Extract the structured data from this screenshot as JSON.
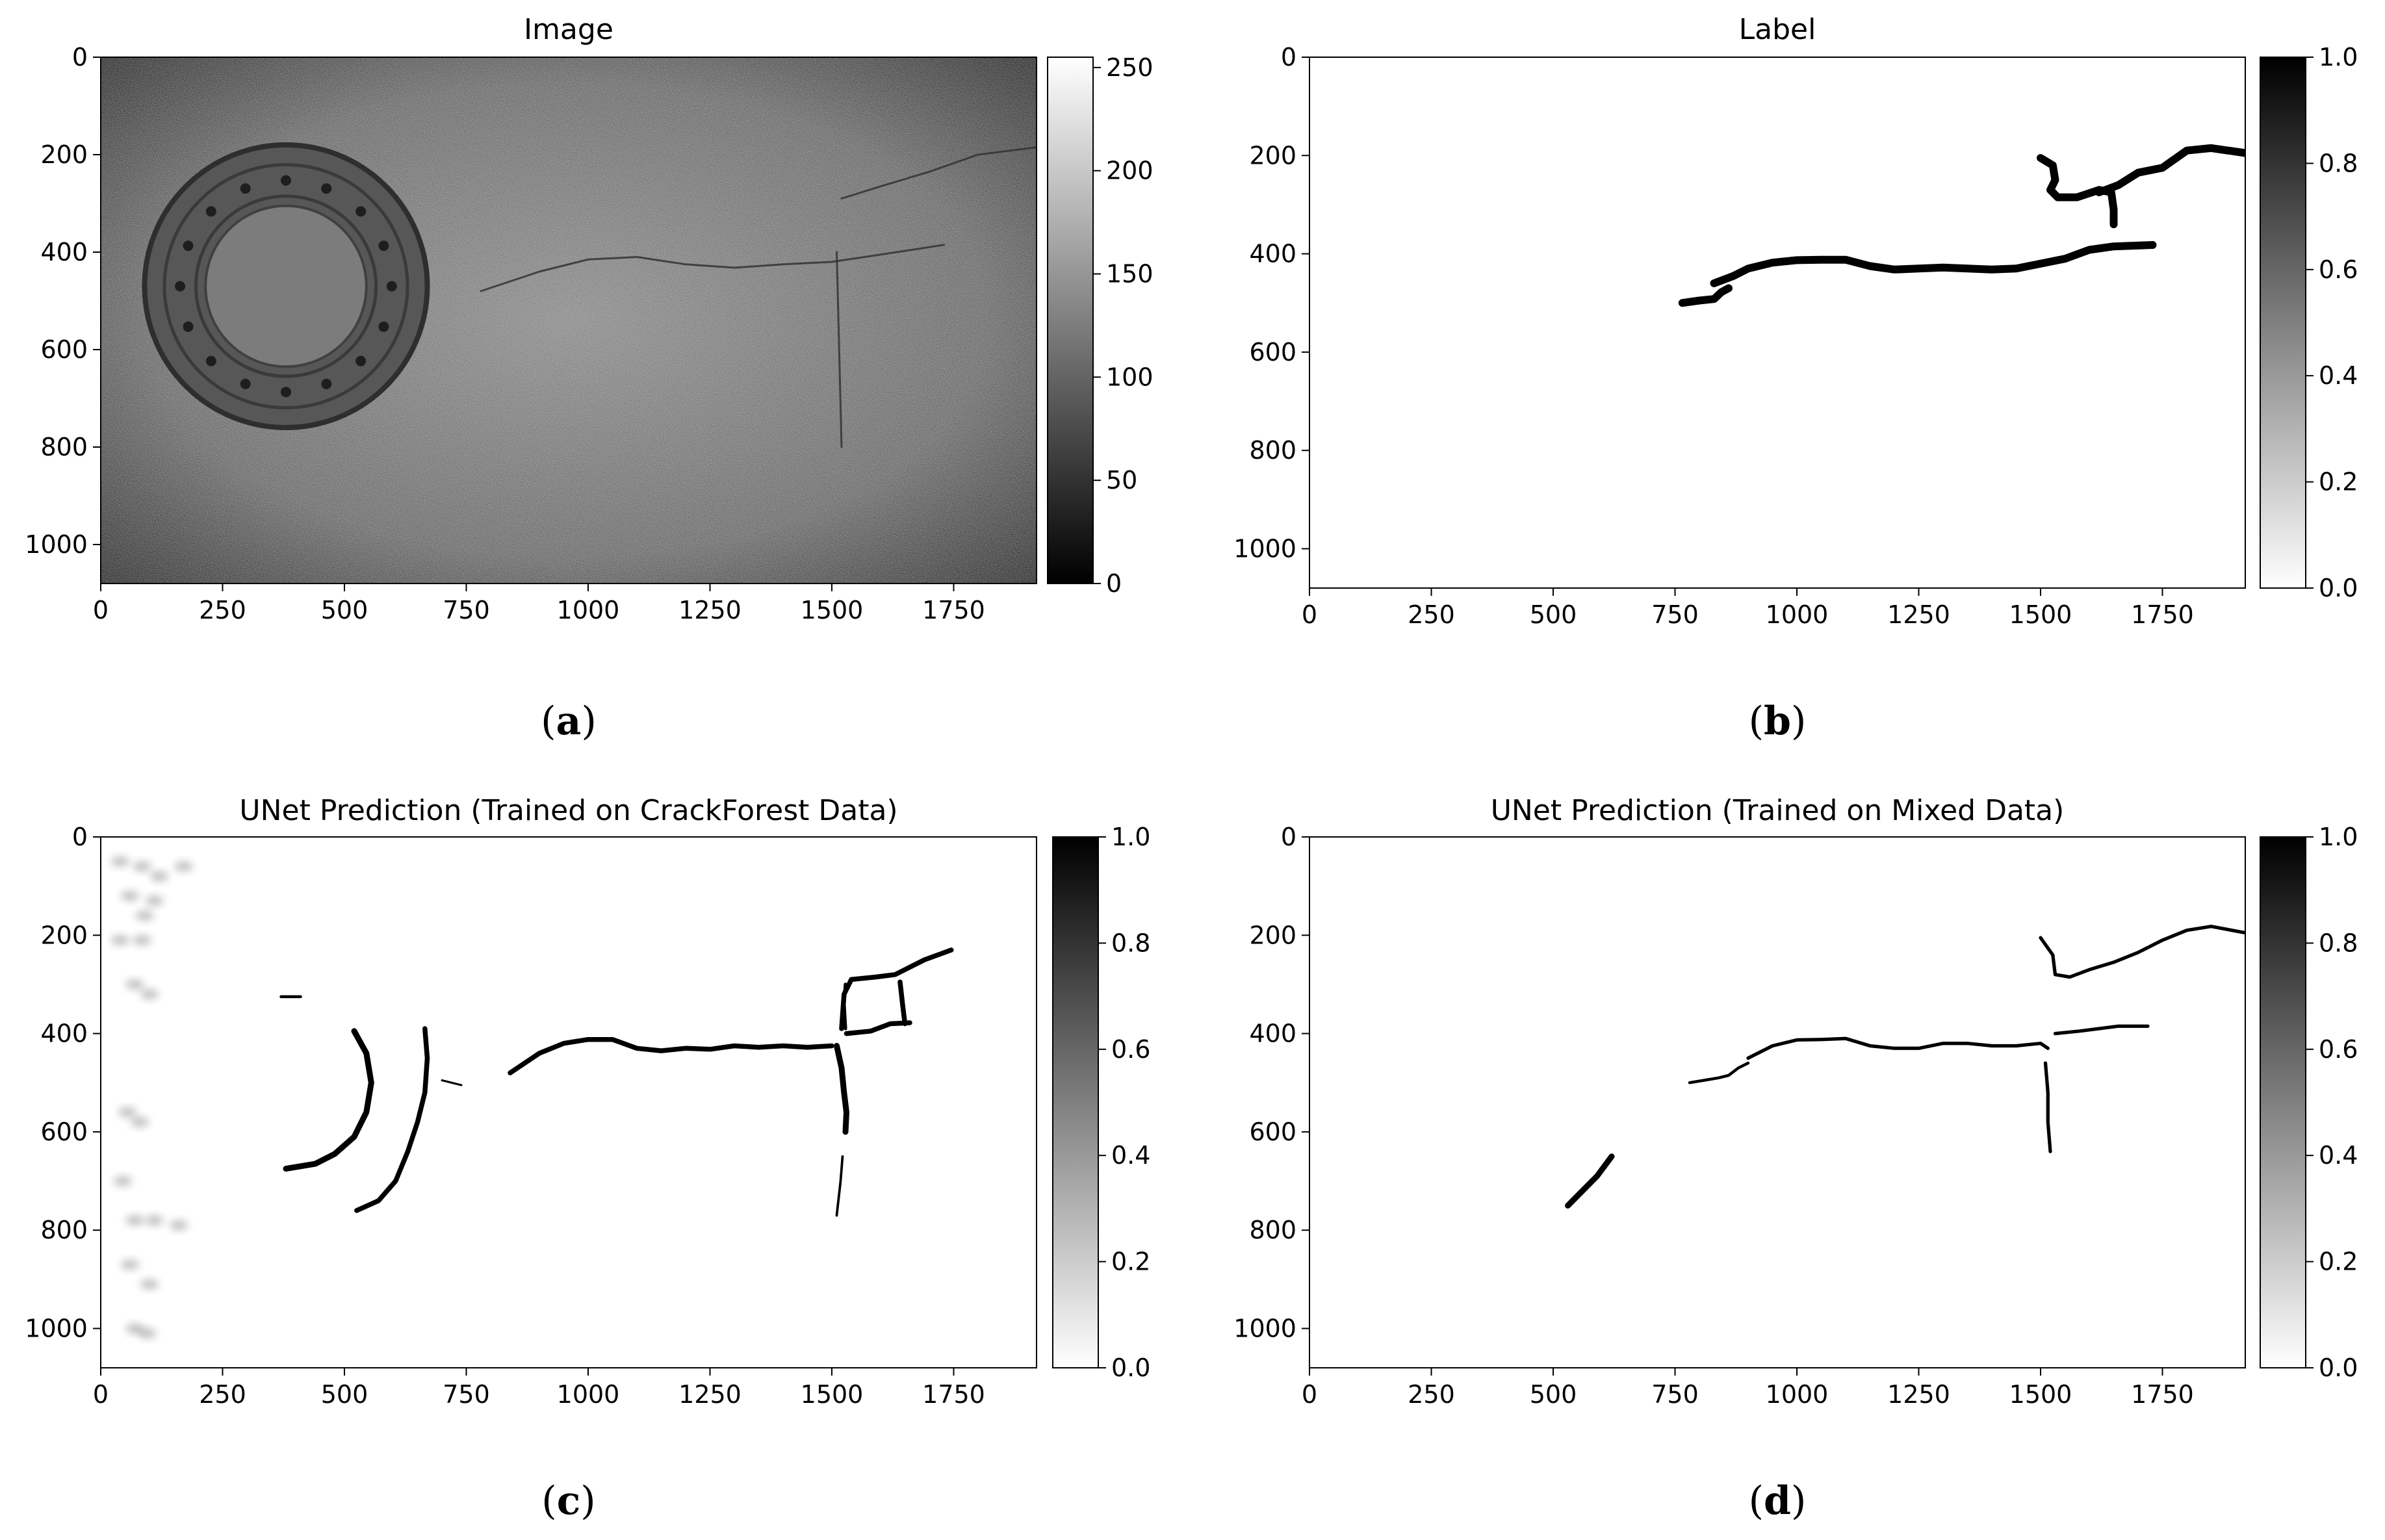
{
  "chart_data": [
    {
      "id": "a",
      "type": "heatmap",
      "title": "Image",
      "caption": "a",
      "x_ticks": [
        0,
        250,
        500,
        750,
        1000,
        1250,
        1500,
        1750
      ],
      "y_ticks": [
        0,
        200,
        400,
        600,
        800,
        1000
      ],
      "xlim": [
        0,
        1920
      ],
      "ylim": [
        1080,
        0
      ],
      "colormap": "gray",
      "colorbar": {
        "range": [
          0,
          255
        ],
        "ticks": [
          "0",
          "50",
          "100",
          "150",
          "200",
          "250"
        ]
      },
      "content": "grayscale asphalt photo with manhole cover",
      "manhole": {
        "center": [
          380,
          470
        ],
        "outer_radius": 290,
        "inner_radius": 165
      },
      "cracks": [
        [
          [
            780,
            480
          ],
          [
            900,
            440
          ],
          [
            1000,
            415
          ],
          [
            1100,
            410
          ],
          [
            1200,
            425
          ],
          [
            1300,
            432
          ],
          [
            1400,
            425
          ],
          [
            1500,
            420
          ],
          [
            1600,
            405
          ],
          [
            1730,
            385
          ]
        ],
        [
          [
            1520,
            290
          ],
          [
            1600,
            265
          ],
          [
            1700,
            235
          ],
          [
            1800,
            200
          ],
          [
            1920,
            185
          ]
        ],
        [
          [
            1510,
            400
          ],
          [
            1515,
            600
          ],
          [
            1520,
            800
          ]
        ]
      ]
    },
    {
      "id": "b",
      "type": "heatmap",
      "title": "Label",
      "caption": "b",
      "x_ticks": [
        0,
        250,
        500,
        750,
        1000,
        1250,
        1500,
        1750
      ],
      "y_ticks": [
        0,
        200,
        400,
        600,
        800,
        1000
      ],
      "xlim": [
        0,
        1920
      ],
      "ylim": [
        1080,
        0
      ],
      "colormap": "gray_r",
      "colorbar": {
        "range": [
          0,
          1
        ],
        "ticks": [
          "0.0",
          "0.2",
          "0.4",
          "0.6",
          "0.8",
          "1.0"
        ]
      },
      "segments": [
        {
          "width": 16,
          "points": [
            [
              765,
              500
            ],
            [
              800,
              495
            ],
            [
              830,
              492
            ],
            [
              845,
              478
            ],
            [
              860,
              470
            ]
          ]
        },
        {
          "width": 16,
          "points": [
            [
              830,
              460
            ],
            [
              870,
              445
            ],
            [
              900,
              430
            ],
            [
              950,
              418
            ],
            [
              1000,
              413
            ],
            [
              1050,
              412
            ],
            [
              1100,
              412
            ],
            [
              1150,
              425
            ],
            [
              1200,
              432
            ],
            [
              1250,
              430
            ],
            [
              1300,
              428
            ],
            [
              1350,
              430
            ],
            [
              1400,
              432
            ],
            [
              1450,
              430
            ],
            [
              1500,
              420
            ],
            [
              1550,
              410
            ],
            [
              1600,
              392
            ],
            [
              1650,
              385
            ],
            [
              1730,
              382
            ]
          ]
        },
        {
          "width": 16,
          "points": [
            [
              1500,
              205
            ],
            [
              1525,
              220
            ],
            [
              1530,
              250
            ],
            [
              1520,
              270
            ],
            [
              1535,
              285
            ],
            [
              1575,
              285
            ],
            [
              1620,
              270
            ],
            [
              1645,
              275
            ],
            [
              1650,
              310
            ],
            [
              1650,
              340
            ]
          ]
        },
        {
          "width": 16,
          "points": [
            [
              1620,
              275
            ],
            [
              1660,
              260
            ],
            [
              1700,
              235
            ],
            [
              1750,
              225
            ],
            [
              1800,
              190
            ],
            [
              1850,
              185
            ],
            [
              1920,
              195
            ]
          ]
        }
      ]
    },
    {
      "id": "c",
      "type": "heatmap",
      "title": "UNet Prediction (Trained on CrackForest Data)",
      "caption": "c",
      "x_ticks": [
        0,
        250,
        500,
        750,
        1000,
        1250,
        1500,
        1750
      ],
      "y_ticks": [
        0,
        200,
        400,
        600,
        800,
        1000
      ],
      "xlim": [
        0,
        1920
      ],
      "ylim": [
        1080,
        0
      ],
      "colormap": "gray_r",
      "colorbar": {
        "range": [
          0,
          1
        ],
        "ticks": [
          "0.0",
          "0.2",
          "0.4",
          "0.6",
          "0.8",
          "1.0"
        ]
      },
      "segments": [
        {
          "width": 10,
          "points": [
            [
              840,
              480
            ],
            [
              870,
              460
            ],
            [
              900,
              440
            ],
            [
              950,
              420
            ],
            [
              1000,
              412
            ],
            [
              1050,
              412
            ],
            [
              1100,
              430
            ],
            [
              1150,
              435
            ],
            [
              1200,
              430
            ],
            [
              1250,
              432
            ],
            [
              1300,
              425
            ],
            [
              1350,
              428
            ],
            [
              1400,
              425
            ],
            [
              1450,
              428
            ],
            [
              1500,
              425
            ]
          ]
        },
        {
          "width": 12,
          "points": [
            [
              1510,
              425
            ],
            [
              1520,
              470
            ],
            [
              1525,
              520
            ],
            [
              1530,
              560
            ],
            [
              1528,
              600
            ]
          ]
        },
        {
          "width": 5,
          "points": [
            [
              1522,
              650
            ],
            [
              1518,
              700
            ],
            [
              1510,
              770
            ]
          ]
        },
        {
          "width": 10,
          "points": [
            [
              1520,
              390
            ],
            [
              1525,
              320
            ],
            [
              1540,
              290
            ],
            [
              1590,
              285
            ],
            [
              1630,
              280
            ],
            [
              1690,
              250
            ],
            [
              1745,
              230
            ]
          ]
        },
        {
          "width": 10,
          "points": [
            [
              1530,
              400
            ],
            [
              1580,
              395
            ],
            [
              1620,
              380
            ],
            [
              1660,
              378
            ]
          ]
        },
        {
          "width": 10,
          "points": [
            [
              1640,
              295
            ],
            [
              1645,
              340
            ],
            [
              1650,
              380
            ]
          ]
        },
        {
          "width": 7,
          "points": [
            [
              1528,
              300
            ],
            [
              1525,
              340
            ],
            [
              1528,
              390
            ]
          ]
        },
        {
          "width": 6,
          "points": [
            [
              370,
              325
            ],
            [
              410,
              325
            ]
          ]
        },
        {
          "width": 12,
          "points": [
            [
              520,
              395
            ],
            [
              545,
              440
            ],
            [
              555,
              500
            ],
            [
              545,
              560
            ],
            [
              520,
              610
            ],
            [
              480,
              645
            ],
            [
              440,
              665
            ],
            [
              380,
              675
            ]
          ]
        },
        {
          "width": 10,
          "points": [
            [
              665,
              390
            ],
            [
              670,
              450
            ],
            [
              665,
              520
            ],
            [
              650,
              580
            ],
            [
              630,
              640
            ],
            [
              605,
              700
            ],
            [
              570,
              740
            ],
            [
              525,
              760
            ]
          ]
        },
        {
          "width": 4,
          "points": [
            [
              700,
              495
            ],
            [
              740,
              505
            ]
          ]
        }
      ],
      "noise_blobs": [
        [
          40,
          50
        ],
        [
          85,
          60
        ],
        [
          120,
          80
        ],
        [
          170,
          60
        ],
        [
          60,
          120
        ],
        [
          110,
          130
        ],
        [
          90,
          160
        ],
        [
          40,
          210
        ],
        [
          85,
          210
        ],
        [
          70,
          300
        ],
        [
          100,
          320
        ],
        [
          55,
          560
        ],
        [
          80,
          580
        ],
        [
          45,
          700
        ],
        [
          70,
          780
        ],
        [
          110,
          780
        ],
        [
          160,
          790
        ],
        [
          60,
          870
        ],
        [
          100,
          910
        ],
        [
          70,
          1000
        ],
        [
          95,
          1010
        ]
      ]
    },
    {
      "id": "d",
      "type": "heatmap",
      "title": "UNet Prediction (Trained on Mixed Data)",
      "caption": "d",
      "x_ticks": [
        0,
        250,
        500,
        750,
        1000,
        1250,
        1500,
        1750
      ],
      "y_ticks": [
        0,
        200,
        400,
        600,
        800,
        1000
      ],
      "xlim": [
        0,
        1920
      ],
      "ylim": [
        1080,
        0
      ],
      "colormap": "gray_r",
      "colorbar": {
        "range": [
          0,
          1
        ],
        "ticks": [
          "0.0",
          "0.2",
          "0.4",
          "0.6",
          "0.8",
          "1.0"
        ]
      },
      "segments": [
        {
          "width": 7,
          "points": [
            [
              1500,
              205
            ],
            [
              1525,
              240
            ],
            [
              1530,
              280
            ],
            [
              1560,
              285
            ],
            [
              1600,
              270
            ],
            [
              1650,
              255
            ],
            [
              1700,
              235
            ],
            [
              1750,
              210
            ],
            [
              1800,
              190
            ],
            [
              1850,
              182
            ],
            [
              1920,
              195
            ]
          ]
        },
        {
          "width": 7,
          "points": [
            [
              900,
              450
            ],
            [
              950,
              425
            ],
            [
              1000,
              413
            ],
            [
              1050,
              412
            ],
            [
              1100,
              410
            ],
            [
              1150,
              425
            ],
            [
              1200,
              430
            ],
            [
              1250,
              430
            ],
            [
              1300,
              420
            ],
            [
              1350,
              420
            ],
            [
              1400,
              425
            ],
            [
              1450,
              425
            ],
            [
              1500,
              420
            ],
            [
              1515,
              430
            ]
          ]
        },
        {
          "width": 7,
          "points": [
            [
              1530,
              400
            ],
            [
              1580,
              395
            ],
            [
              1620,
              390
            ],
            [
              1660,
              385
            ],
            [
              1720,
              385
            ]
          ]
        },
        {
          "width": 7,
          "points": [
            [
              1510,
              460
            ],
            [
              1515,
              520
            ],
            [
              1515,
              580
            ],
            [
              1520,
              640
            ]
          ]
        },
        {
          "width": 6,
          "points": [
            [
              780,
              500
            ],
            [
              810,
              495
            ],
            [
              840,
              490
            ],
            [
              860,
              485
            ],
            [
              880,
              470
            ],
            [
              900,
              460
            ]
          ]
        },
        {
          "width": 12,
          "points": [
            [
              530,
              750
            ],
            [
              560,
              720
            ],
            [
              590,
              690
            ],
            [
              620,
              650
            ]
          ]
        }
      ]
    }
  ]
}
